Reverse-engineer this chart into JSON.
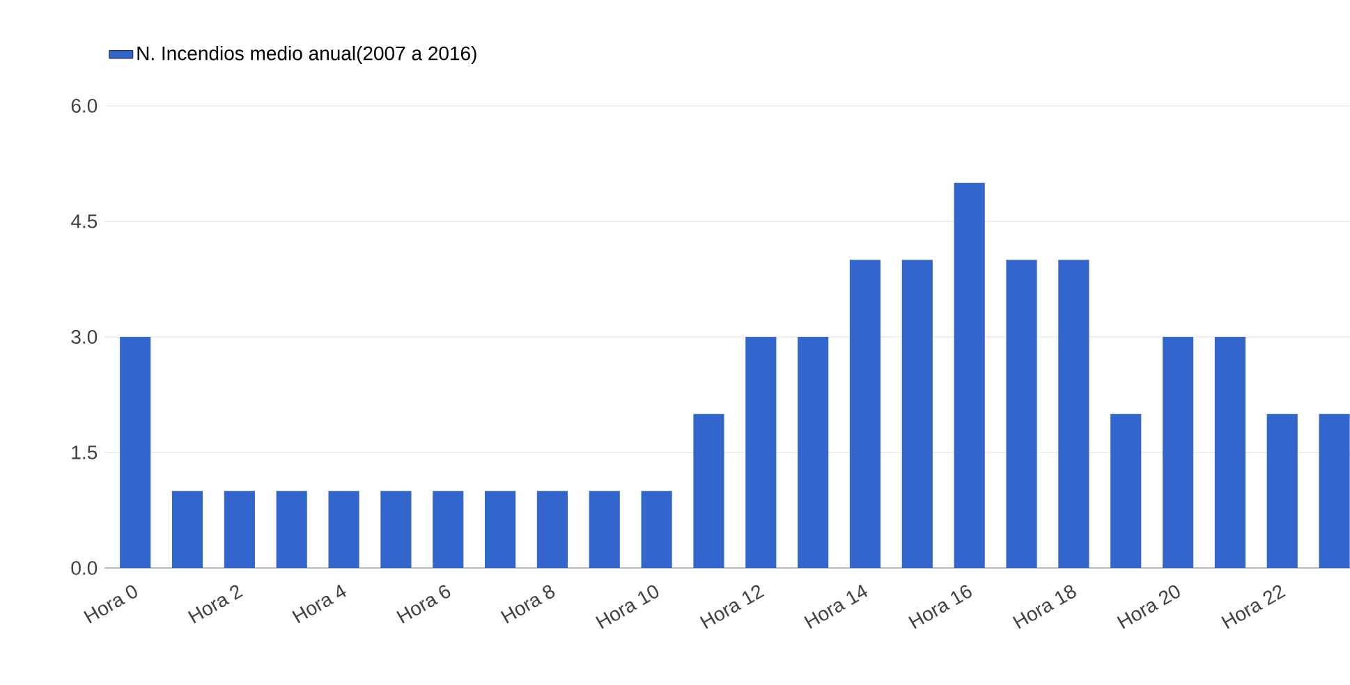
{
  "chart_data": {
    "type": "bar",
    "categories": [
      "Hora 0",
      null,
      "Hora 2",
      null,
      "Hora 4",
      null,
      "Hora 6",
      null,
      "Hora 8",
      null,
      "Hora 10",
      null,
      "Hora 12",
      null,
      "Hora 14",
      null,
      "Hora 16",
      null,
      "Hora 18",
      null,
      "Hora 20",
      null,
      "Hora 22",
      null
    ],
    "series": [
      {
        "name": "N. Incendios medio anual(2007 a 2016)",
        "color": "#3366cc",
        "values": [
          3,
          1,
          1,
          1,
          1,
          1,
          1,
          1,
          1,
          1,
          1,
          2,
          3,
          3,
          4,
          4,
          5,
          4,
          4,
          2,
          3,
          3,
          2,
          2
        ]
      }
    ],
    "ylim": [
      0,
      6
    ],
    "yticks": [
      {
        "value": 0,
        "label": "0.0"
      },
      {
        "value": 1.5,
        "label": "1.5"
      },
      {
        "value": 3,
        "label": "3.0"
      },
      {
        "value": 4.5,
        "label": "4.5"
      },
      {
        "value": 6,
        "label": "6.0"
      }
    ],
    "grid": "y",
    "legend": "top left"
  }
}
